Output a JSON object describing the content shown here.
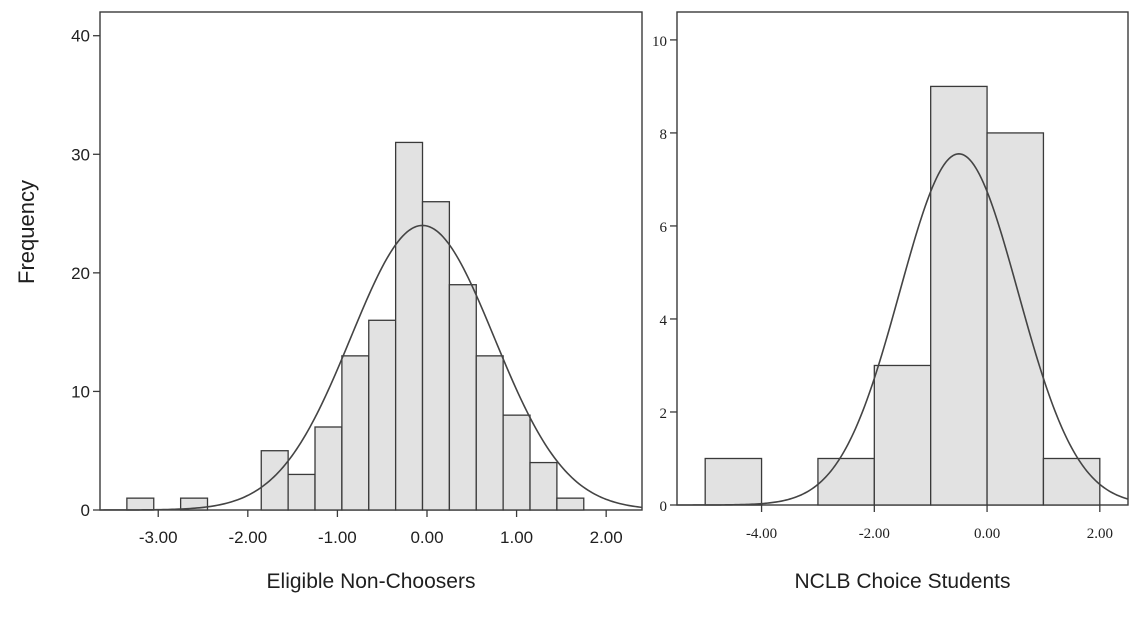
{
  "ylabel": "Frequency",
  "chart_data": [
    {
      "type": "bar",
      "title": "",
      "xlabel": "Eligible Non-Choosers",
      "ylabel": "Frequency",
      "bin_width": 0.3,
      "bins": [
        {
          "start": -3.35,
          "end": -3.05,
          "count": 1
        },
        {
          "start": -3.05,
          "end": -2.75,
          "count": 0
        },
        {
          "start": -2.75,
          "end": -2.45,
          "count": 1
        },
        {
          "start": -2.45,
          "end": -2.15,
          "count": 0
        },
        {
          "start": -2.15,
          "end": -1.85,
          "count": 0
        },
        {
          "start": -1.85,
          "end": -1.55,
          "count": 5
        },
        {
          "start": -1.55,
          "end": -1.25,
          "count": 3
        },
        {
          "start": -1.25,
          "end": -0.95,
          "count": 7
        },
        {
          "start": -0.95,
          "end": -0.65,
          "count": 13
        },
        {
          "start": -0.65,
          "end": -0.35,
          "count": 16
        },
        {
          "start": -0.35,
          "end": -0.05,
          "count": 31
        },
        {
          "start": -0.05,
          "end": 0.25,
          "count": 26
        },
        {
          "start": 0.25,
          "end": 0.55,
          "count": 19
        },
        {
          "start": 0.55,
          "end": 0.85,
          "count": 13
        },
        {
          "start": 0.85,
          "end": 1.15,
          "count": 8
        },
        {
          "start": 1.15,
          "end": 1.45,
          "count": 4
        },
        {
          "start": 1.45,
          "end": 1.75,
          "count": 1
        }
      ],
      "normal_curve": {
        "mean": -0.05,
        "sd": 0.8,
        "peak": 24
      },
      "xlim": [
        -3.65,
        2.4
      ],
      "ylim": [
        0,
        42
      ],
      "x_ticks": [
        -3.0,
        -2.0,
        -1.0,
        0.0,
        1.0,
        2.0
      ],
      "x_tick_labels": [
        "-3.00",
        "-2.00",
        "-1.00",
        "0.00",
        "1.00",
        "2.00"
      ],
      "y_ticks": [
        0,
        10,
        20,
        30,
        40
      ],
      "y_tick_labels": [
        "0",
        "10",
        "20",
        "30",
        "40"
      ],
      "grid": false,
      "bar_color": "#e2e2e2",
      "edge_color": "#3a3a3a"
    },
    {
      "type": "bar",
      "title": "",
      "xlabel": "NCLB Choice Students",
      "ylabel": "",
      "bin_width": 1.0,
      "bins": [
        {
          "start": -5.0,
          "end": -4.0,
          "count": 1
        },
        {
          "start": -4.0,
          "end": -3.0,
          "count": 0
        },
        {
          "start": -3.0,
          "end": -2.0,
          "count": 1
        },
        {
          "start": -2.0,
          "end": -1.0,
          "count": 3
        },
        {
          "start": -1.0,
          "end": 0.0,
          "count": 9
        },
        {
          "start": 0.0,
          "end": 1.0,
          "count": 8
        },
        {
          "start": 1.0,
          "end": 2.0,
          "count": 1
        }
      ],
      "normal_curve": {
        "mean": -0.5,
        "sd": 1.05,
        "peak": 7.55
      },
      "xlim": [
        -5.5,
        2.5
      ],
      "ylim": [
        0,
        10.6
      ],
      "x_ticks": [
        -4.0,
        -2.0,
        0.0,
        2.0
      ],
      "x_tick_labels": [
        "-4.00",
        "-2.00",
        "0.00",
        "2.00"
      ],
      "y_ticks": [
        0,
        2,
        4,
        6,
        8,
        10
      ],
      "y_tick_labels": [
        "0",
        "2",
        "4",
        "6",
        "8",
        "10"
      ],
      "grid": false,
      "bar_color": "#e2e2e2",
      "edge_color": "#3a3a3a"
    }
  ]
}
